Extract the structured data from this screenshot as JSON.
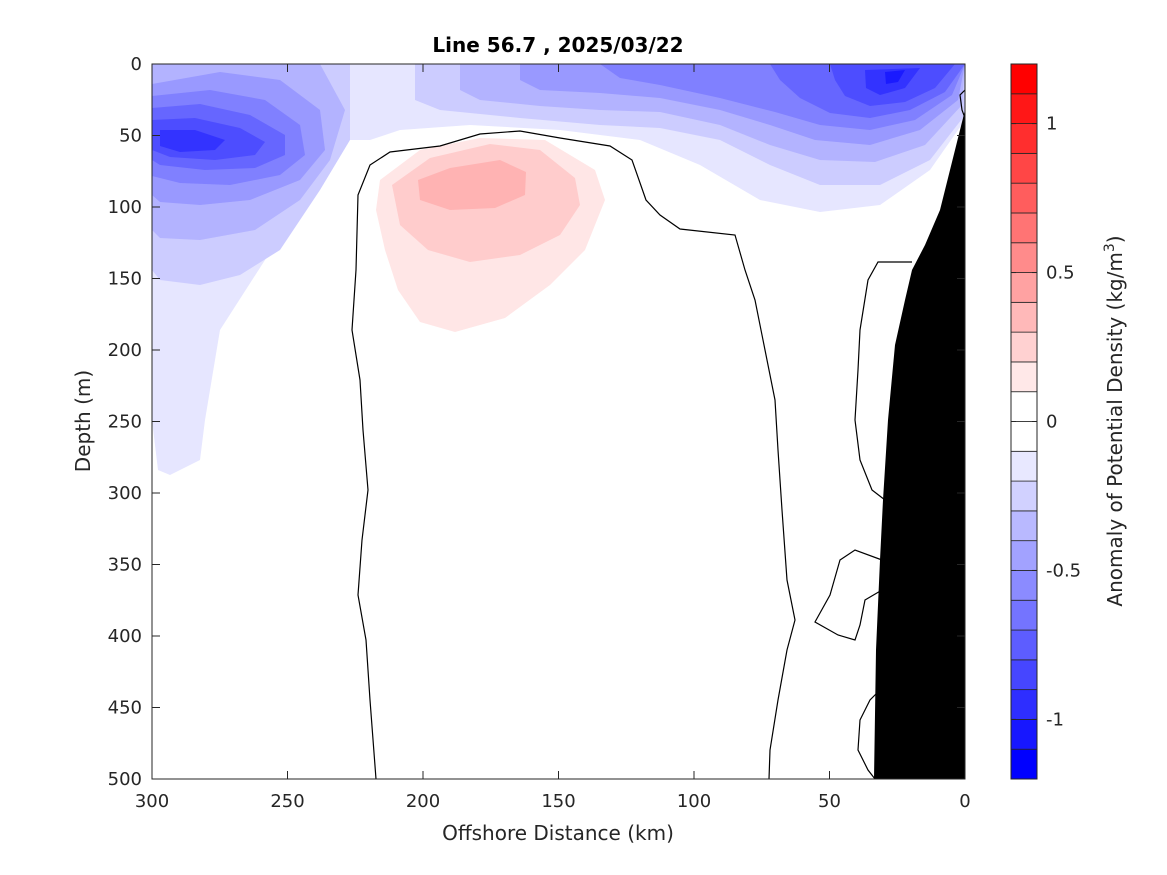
{
  "chart_data": {
    "type": "heatmap",
    "title": "Line 56.7 , 2025/03/22",
    "xlabel": "Offshore Distance (km)",
    "ylabel": "Depth (m)",
    "xlim": [
      300,
      0
    ],
    "ylim": [
      0,
      500
    ],
    "x_ticks": [
      300,
      250,
      200,
      150,
      100,
      50,
      0
    ],
    "y_ticks": [
      0,
      50,
      100,
      150,
      200,
      250,
      300,
      350,
      400,
      450,
      500
    ],
    "colorbar": {
      "label": "Anomaly of Potential Density (kg/m",
      "label_superscript": "3",
      "label_suffix": ")",
      "range": [
        -1.2,
        1.2
      ],
      "tick_values": [
        1,
        0.5,
        0,
        -0.5,
        -1
      ],
      "tick_labels": [
        "1",
        "0.5",
        "0",
        "-0.5",
        "-1"
      ],
      "levels": [
        -1.2,
        -1.1,
        -1.0,
        -0.9,
        -0.8,
        -0.7,
        -0.6,
        -0.5,
        -0.4,
        -0.3,
        -0.2,
        -0.1,
        0,
        0.1,
        0.2,
        0.3,
        0.4,
        0.5,
        0.6,
        0.7,
        0.8,
        0.9,
        1.0,
        1.1,
        1.2
      ],
      "negative_color": "#0000ff",
      "positive_color": "#ff0000"
    },
    "features": {
      "surface_negative_anomaly": {
        "x_range_km": [
          300,
          0
        ],
        "depth_range_m": [
          0,
          290
        ],
        "min_value": -1.0
      },
      "nearshore_negative_core": {
        "x_km": 22,
        "depth_m": 10,
        "value": -1.0
      },
      "offshore_negative_core": {
        "x_km": 290,
        "depth_m": 55,
        "value": -0.9
      },
      "positive_anomaly_core": {
        "x_km": 175,
        "depth_m": 85,
        "value": 0.3
      },
      "zero_contour_color": "#000000",
      "bathymetry_color": "#000000"
    }
  }
}
